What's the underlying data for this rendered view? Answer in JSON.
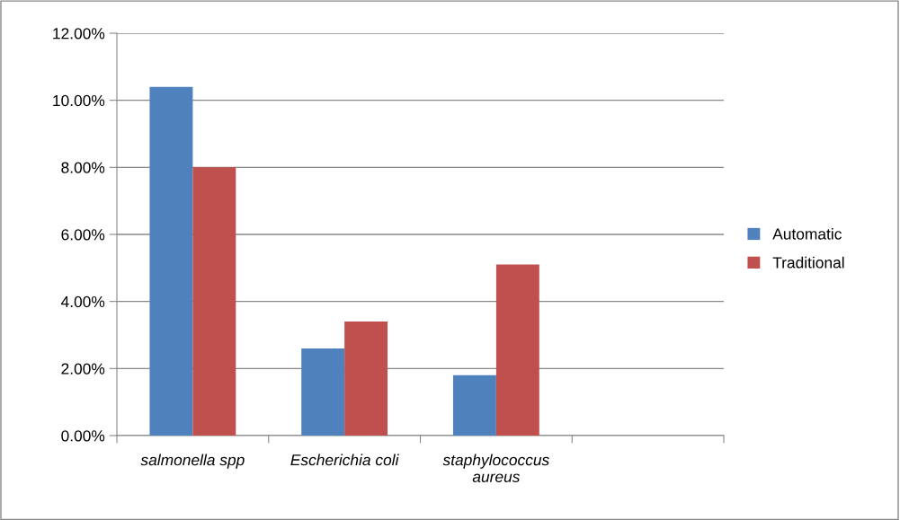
{
  "chart_data": {
    "type": "bar",
    "categories": [
      "salmonella spp",
      "Escherichia coli",
      "staphylococcus\naureus",
      null
    ],
    "series": [
      {
        "name": "Automatic",
        "color": "#4f81bd",
        "values": [
          10.4,
          2.6,
          1.8,
          null
        ]
      },
      {
        "name": "Traditional",
        "color": "#c0504d",
        "values": [
          8.0,
          3.4,
          5.1,
          null
        ]
      }
    ],
    "ylim": [
      0,
      12
    ],
    "yticks": [
      {
        "value": 0,
        "label": "0.00%"
      },
      {
        "value": 2,
        "label": "2.00%"
      },
      {
        "value": 4,
        "label": "4.00%"
      },
      {
        "value": 6,
        "label": "6.00%"
      },
      {
        "value": 8,
        "label": "8.00%"
      },
      {
        "value": 10,
        "label": "10.00%"
      },
      {
        "value": 12,
        "label": "12.00%"
      }
    ],
    "grid": "y",
    "legend": "right"
  }
}
